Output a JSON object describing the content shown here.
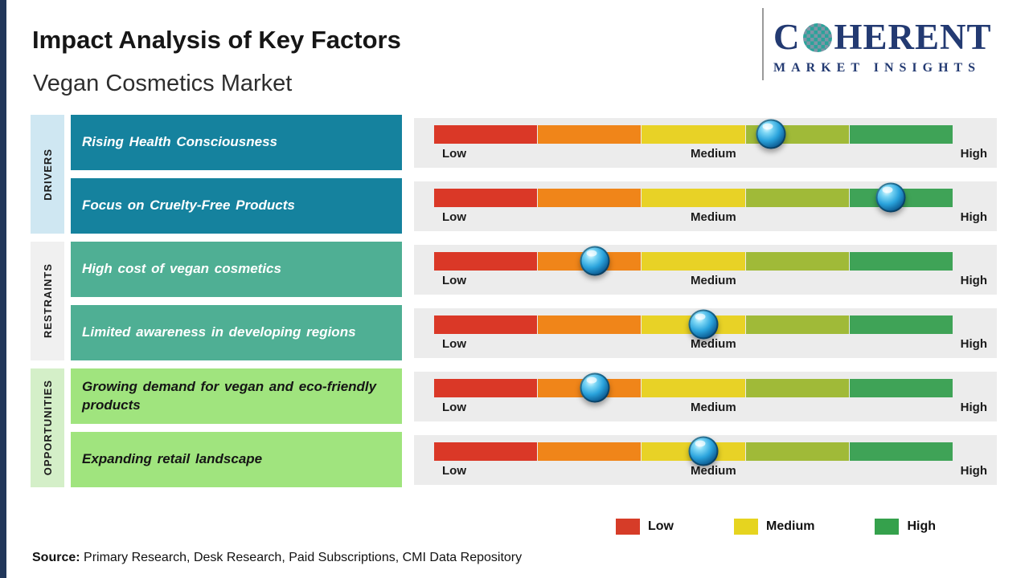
{
  "page": {
    "title": "Impact Analysis of Key Factors",
    "subtitle": "Vegan Cosmetics Market"
  },
  "logo": {
    "brand_c": "C",
    "brand_rest": "HERENT",
    "tagline": "MARKET INSIGHTS",
    "navy": "#233a72",
    "teal": "#2ba39a"
  },
  "sidebar": {
    "categories": [
      {
        "label": "DRIVERS",
        "bg": "#cfe7f2"
      },
      {
        "label": "RESTRAINTS",
        "bg": "#f0f0f0"
      },
      {
        "label": "OPPORTUNITIES",
        "bg": "#d4efc8"
      }
    ]
  },
  "scale": {
    "low": "Low",
    "medium": "Medium",
    "high": "High"
  },
  "bar": {
    "segment_colors": [
      "#da3827",
      "#f08519",
      "#e8d226",
      "#a0ba38",
      "#3fa357"
    ]
  },
  "rows": [
    {
      "factor": "Rising Health Consciousness",
      "category": "DRIVERS",
      "box_color": "#15829e",
      "text_color": "#ffffff",
      "marker_pct": 65
    },
    {
      "factor": "Focus on Cruelty-Free Products",
      "category": "DRIVERS",
      "box_color": "#15829e",
      "text_color": "#ffffff",
      "marker_pct": 88
    },
    {
      "factor": "High cost of vegan cosmetics",
      "category": "RESTRAINTS",
      "box_color": "#4faf94",
      "text_color": "#ffffff",
      "marker_pct": 31
    },
    {
      "factor": "Limited awareness in developing regions",
      "category": "RESTRAINTS",
      "box_color": "#4faf94",
      "text_color": "#ffffff",
      "marker_pct": 52
    },
    {
      "factor": "Growing demand for vegan and eco-friendly products",
      "category": "OPPORTUNITIES",
      "box_color": "#a0e47e",
      "text_color": "#151515",
      "marker_pct": 31
    },
    {
      "factor": "Expanding retail landscape",
      "category": "OPPORTUNITIES",
      "box_color": "#a0e47e",
      "text_color": "#151515",
      "marker_pct": 52
    }
  ],
  "legend": {
    "items": [
      {
        "label": "Low",
        "color": "#d63c28"
      },
      {
        "label": "Medium",
        "color": "#e6d41f"
      },
      {
        "label": "High",
        "color": "#35a14c"
      }
    ]
  },
  "source": {
    "label": "Source:",
    "text": " Primary Research, Desk Research, Paid Subscriptions, CMI Data Repository"
  },
  "chart_data": {
    "type": "bar",
    "title": "Impact Analysis of Key Factors",
    "subtitle": "Vegan Cosmetics Market",
    "scale": {
      "min_label": "Low",
      "mid_label": "Medium",
      "max_label": "High",
      "range_pct": [
        0,
        100
      ]
    },
    "legend": [
      "Low",
      "Medium",
      "High"
    ],
    "legend_position": "bottom-right",
    "groups": [
      {
        "category": "DRIVERS",
        "factors": [
          {
            "name": "Rising Health Consciousness",
            "impact_pct": 65,
            "impact_level": "Medium-High"
          },
          {
            "name": "Focus on Cruelty-Free Products",
            "impact_pct": 88,
            "impact_level": "High"
          }
        ]
      },
      {
        "category": "RESTRAINTS",
        "factors": [
          {
            "name": "High cost of vegan cosmetics",
            "impact_pct": 31,
            "impact_level": "Low-Medium"
          },
          {
            "name": "Limited awareness in developing regions",
            "impact_pct": 52,
            "impact_level": "Medium"
          }
        ]
      },
      {
        "category": "OPPORTUNITIES",
        "factors": [
          {
            "name": "Growing demand for vegan and eco-friendly products",
            "impact_pct": 31,
            "impact_level": "Low-Medium"
          },
          {
            "name": "Expanding retail landscape",
            "impact_pct": 52,
            "impact_level": "Medium"
          }
        ]
      }
    ],
    "source": "Primary Research, Desk Research, Paid Subscriptions, CMI Data Repository"
  }
}
